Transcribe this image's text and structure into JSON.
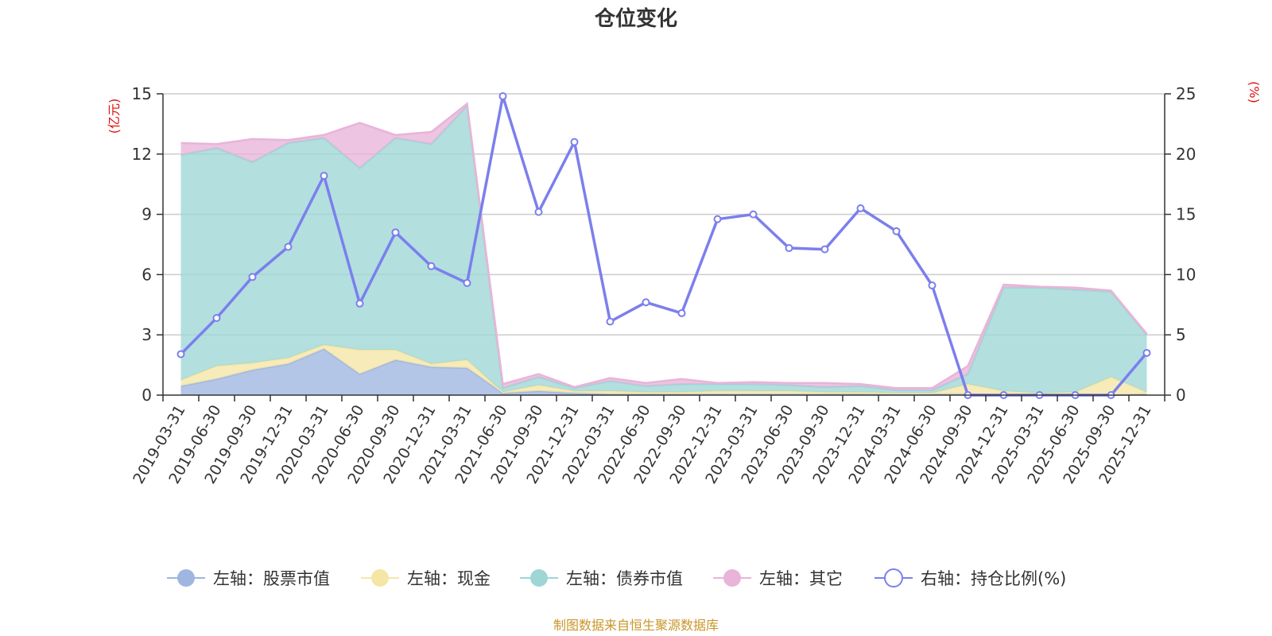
{
  "chart_data": {
    "type": "area",
    "title": "仓位变化",
    "left_unit": "(亿元)",
    "right_unit": "(%)",
    "source": "制图数据来自恒生聚源数据库",
    "x": [
      "2019-03-31",
      "2019-06-30",
      "2019-09-30",
      "2019-12-31",
      "2020-03-31",
      "2020-06-30",
      "2020-09-30",
      "2020-12-31",
      "2021-03-31",
      "2021-06-30",
      "2021-09-30",
      "2021-12-31",
      "2022-03-31",
      "2022-06-30",
      "2022-09-30",
      "2022-12-31",
      "2023-03-31",
      "2023-06-30",
      "2023-09-30",
      "2023-12-31",
      "2024-03-31",
      "2024-06-30",
      "2024-09-30",
      "2024-12-31",
      "2025-03-31",
      "2025-06-30",
      "2025-09-30",
      "2025-12-31"
    ],
    "y_left": {
      "min": 0,
      "max": 15,
      "ticks": [
        "0",
        "3",
        "6",
        "9",
        "12",
        "15"
      ]
    },
    "y_right": {
      "min": 0,
      "max": 25,
      "ticks": [
        "0",
        "5",
        "10",
        "15",
        "20",
        "25"
      ]
    },
    "grid": true,
    "legend_position": "bottom",
    "series": [
      {
        "name": "左轴：股票市值",
        "axis": "left",
        "kind": "stacked-area",
        "color": "#9fb6e0",
        "values": [
          0.45,
          0.8,
          1.25,
          1.55,
          2.3,
          1.05,
          1.75,
          1.4,
          1.35,
          0.1,
          0.2,
          0.1,
          0.05,
          0.05,
          0.05,
          0.05,
          0.05,
          0.05,
          0.05,
          0.05,
          0.05,
          0.05,
          0.05,
          0.0,
          0.0,
          0.0,
          0.0,
          0.05
        ]
      },
      {
        "name": "左轴：现金",
        "axis": "left",
        "kind": "stacked-area",
        "color": "#f5e6a6",
        "values": [
          0.3,
          0.65,
          0.35,
          0.3,
          0.2,
          1.2,
          0.5,
          0.15,
          0.4,
          0.05,
          0.3,
          0.1,
          0.15,
          0.1,
          0.1,
          0.15,
          0.15,
          0.15,
          0.1,
          0.1,
          0.05,
          0.05,
          0.5,
          0.2,
          0.1,
          0.15,
          0.9,
          0.1
        ]
      },
      {
        "name": "左轴：债券市值",
        "axis": "left",
        "kind": "stacked-area",
        "color": "#9ed6d6",
        "values": [
          11.2,
          10.85,
          10.0,
          10.7,
          10.3,
          9.05,
          10.55,
          10.95,
          12.65,
          0.2,
          0.4,
          0.15,
          0.5,
          0.3,
          0.4,
          0.35,
          0.35,
          0.3,
          0.25,
          0.3,
          0.15,
          0.15,
          0.5,
          5.15,
          5.25,
          5.1,
          4.25,
          2.85
        ]
      },
      {
        "name": "左轴：其它",
        "axis": "left",
        "kind": "stacked-area",
        "color": "#e8b4d8",
        "values": [
          0.6,
          0.2,
          1.15,
          0.15,
          0.15,
          2.25,
          0.15,
          0.6,
          0.1,
          0.2,
          0.15,
          0.05,
          0.15,
          0.15,
          0.25,
          0.05,
          0.1,
          0.1,
          0.2,
          0.1,
          0.1,
          0.1,
          0.4,
          0.15,
          0.05,
          0.1,
          0.05,
          0.05
        ]
      },
      {
        "name": "右轴：持仓比例(%)",
        "axis": "right",
        "kind": "line",
        "color": "#7b7fed",
        "values": [
          3.4,
          6.4,
          9.8,
          12.3,
          18.2,
          7.6,
          13.5,
          10.7,
          9.3,
          24.8,
          15.2,
          21.0,
          6.1,
          7.7,
          6.8,
          14.6,
          15.0,
          12.2,
          12.1,
          15.5,
          13.6,
          9.1,
          0.0,
          0.0,
          0.0,
          0.0,
          0.0,
          3.5
        ]
      }
    ]
  }
}
